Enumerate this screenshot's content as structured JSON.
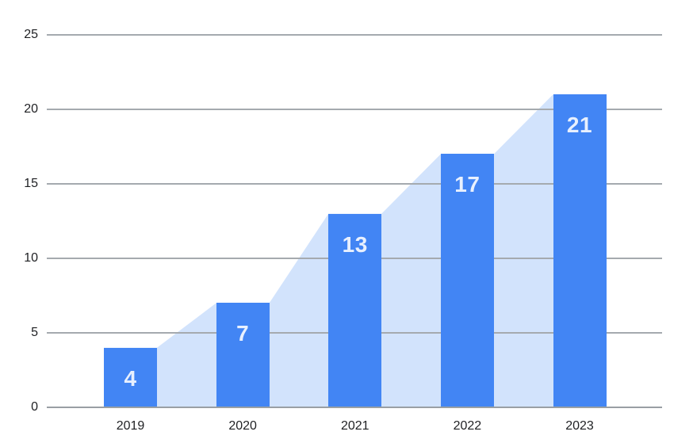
{
  "chart_data": {
    "type": "bar",
    "title": "",
    "xlabel": "",
    "ylabel": "",
    "categories": [
      "2019",
      "2020",
      "2021",
      "2022",
      "2023"
    ],
    "series": [
      {
        "name": "columns",
        "type": "bar",
        "values": [
          4,
          7,
          13,
          17,
          21
        ]
      },
      {
        "name": "area-backdrop",
        "type": "area",
        "values": [
          4,
          7,
          13,
          17,
          21
        ]
      }
    ],
    "values": [
      4,
      7,
      13,
      17,
      21
    ],
    "bar_labels": [
      "4",
      "7",
      "13",
      "17",
      "21"
    ],
    "ylim": [
      0,
      25
    ],
    "yticks": [
      0,
      5,
      10,
      15,
      20,
      25
    ],
    "grid": true,
    "legend": "none",
    "colors": {
      "bar": "#4285F4",
      "area": "#D2E3FC",
      "gridline": "#A5AAAF",
      "baseline": "#999FA4",
      "axis_text": "#1F2023",
      "bar_label_text": "#E8F0FE",
      "background": "#FFFFFF"
    }
  }
}
